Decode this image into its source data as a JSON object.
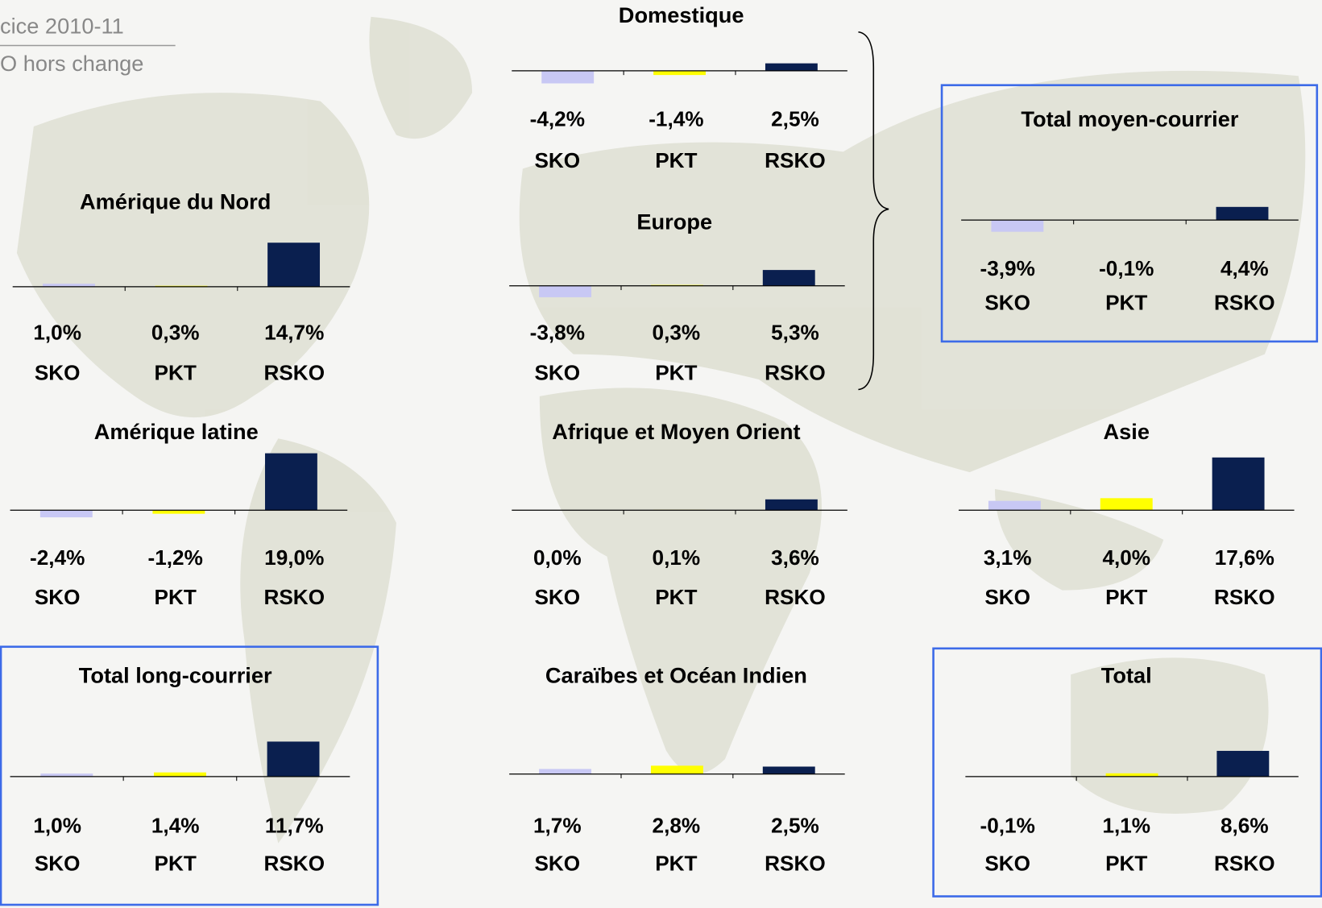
{
  "header": {
    "title": "cice 2010-11",
    "subtitle": "O hors change"
  },
  "chart_data": [
    {
      "type": "bar",
      "title": "Domestique",
      "categories": [
        "SKO",
        "PKT",
        "RSKO"
      ],
      "values": [
        -4.2,
        -1.4,
        2.5
      ],
      "value_labels": [
        "-4,2%",
        "-1,4%",
        "2,5%"
      ],
      "colors": [
        "#c8c8f4",
        "#ffff00",
        "#0a1f4f"
      ]
    },
    {
      "type": "bar",
      "title": "Europe",
      "categories": [
        "SKO",
        "PKT",
        "RSKO"
      ],
      "values": [
        -3.8,
        0.3,
        5.3
      ],
      "value_labels": [
        "-3,8%",
        "0,3%",
        "5,3%"
      ],
      "colors": [
        "#c8c8f4",
        "#ffff00",
        "#0a1f4f"
      ]
    },
    {
      "type": "bar",
      "title": "Amérique du Nord",
      "categories": [
        "SKO",
        "PKT",
        "RSKO"
      ],
      "values": [
        1.0,
        0.3,
        14.7
      ],
      "value_labels": [
        "1,0%",
        "0,3%",
        "14,7%"
      ],
      "colors": [
        "#c8c8f4",
        "#ffff00",
        "#0a1f4f"
      ]
    },
    {
      "type": "bar",
      "title": "Total moyen-courrier",
      "categories": [
        "SKO",
        "PKT",
        "RSKO"
      ],
      "values": [
        -3.9,
        -0.1,
        4.4
      ],
      "value_labels": [
        "-3,9%",
        "-0,1%",
        "4,4%"
      ],
      "colors": [
        "#c8c8f4",
        "#ffff00",
        "#0a1f4f"
      ]
    },
    {
      "type": "bar",
      "title": "Amérique latine",
      "categories": [
        "SKO",
        "PKT",
        "RSKO"
      ],
      "values": [
        -2.4,
        -1.2,
        19.0
      ],
      "value_labels": [
        "-2,4%",
        "-1,2%",
        "19,0%"
      ],
      "colors": [
        "#c8c8f4",
        "#ffff00",
        "#0a1f4f"
      ]
    },
    {
      "type": "bar",
      "title": "Afrique et Moyen Orient",
      "categories": [
        "SKO",
        "PKT",
        "RSKO"
      ],
      "values": [
        0.0,
        0.1,
        3.6
      ],
      "value_labels": [
        "0,0%",
        "0,1%",
        "3,6%"
      ],
      "colors": [
        "#c8c8f4",
        "#ffff00",
        "#0a1f4f"
      ]
    },
    {
      "type": "bar",
      "title": "Asie",
      "categories": [
        "SKO",
        "PKT",
        "RSKO"
      ],
      "values": [
        3.1,
        4.0,
        17.6
      ],
      "value_labels": [
        "3,1%",
        "4,0%",
        "17,6%"
      ],
      "colors": [
        "#c8c8f4",
        "#ffff00",
        "#0a1f4f"
      ]
    },
    {
      "type": "bar",
      "title": "Total long-courrier",
      "categories": [
        "SKO",
        "PKT",
        "RSKO"
      ],
      "values": [
        1.0,
        1.4,
        11.7
      ],
      "value_labels": [
        "1,0%",
        "1,4%",
        "11,7%"
      ],
      "colors": [
        "#c8c8f4",
        "#ffff00",
        "#0a1f4f"
      ]
    },
    {
      "type": "bar",
      "title": "Caraïbes et Océan Indien",
      "categories": [
        "SKO",
        "PKT",
        "RSKO"
      ],
      "values": [
        1.7,
        2.8,
        2.5
      ],
      "value_labels": [
        "1,7%",
        "2,8%",
        "2,5%"
      ],
      "colors": [
        "#c8c8f4",
        "#ffff00",
        "#0a1f4f"
      ]
    },
    {
      "type": "bar",
      "title": "Total",
      "categories": [
        "SKO",
        "PKT",
        "RSKO"
      ],
      "values": [
        -0.1,
        1.1,
        8.6
      ],
      "value_labels": [
        "-0,1%",
        "1,1%",
        "8,6%"
      ],
      "colors": [
        "#c8c8f4",
        "#ffff00",
        "#0a1f4f"
      ]
    }
  ]
}
